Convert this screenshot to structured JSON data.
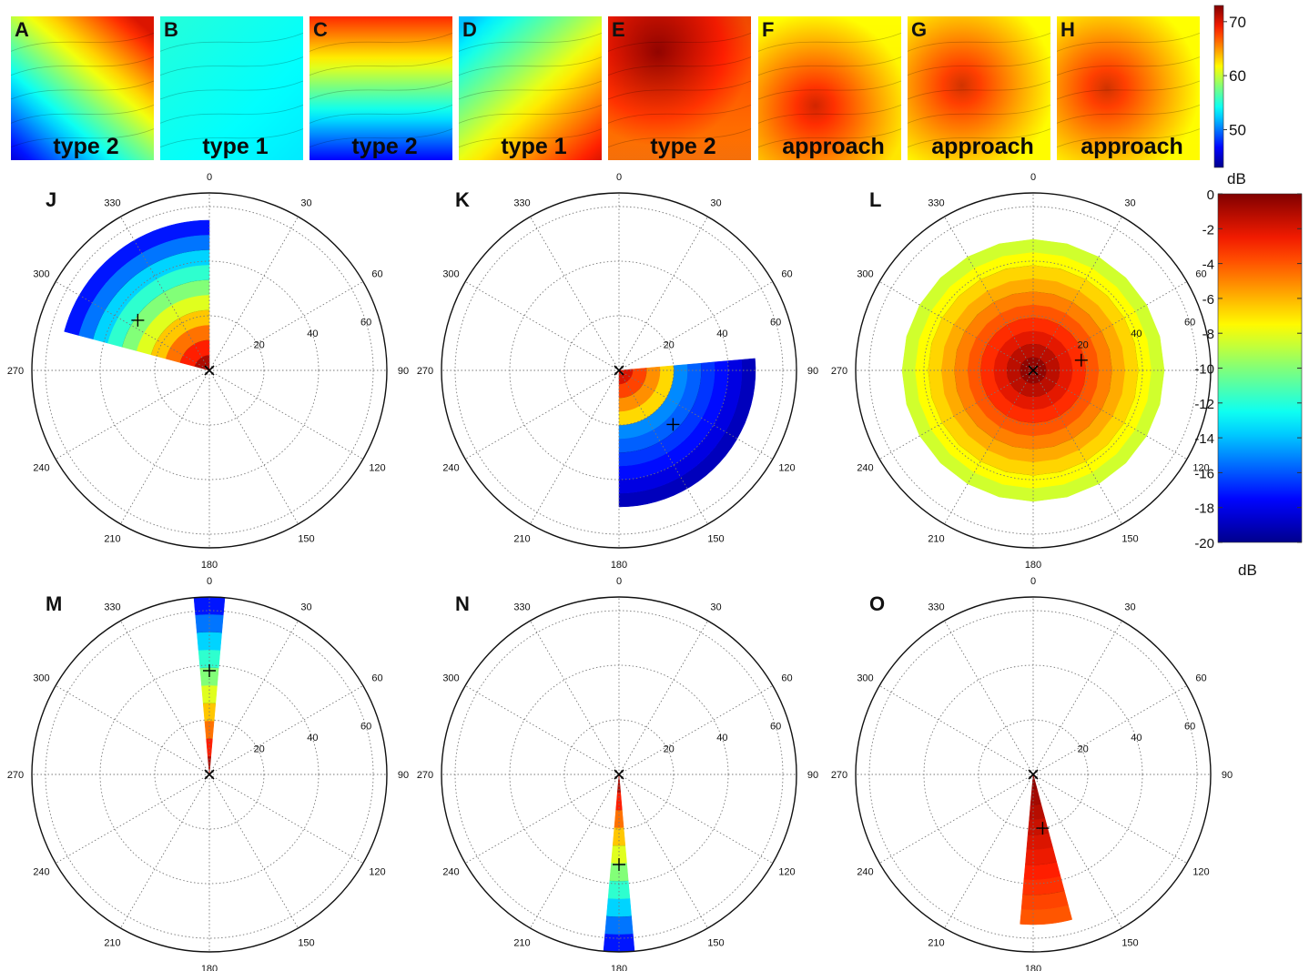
{
  "chart_data": [
    {
      "type": "heatmap",
      "group": "top-row",
      "colorbar": {
        "label": "dB",
        "ticks": [
          50,
          60,
          70
        ],
        "range": [
          43,
          73
        ]
      },
      "panels": [
        {
          "letter": "A",
          "label": "type 2",
          "pattern": "diag-tr"
        },
        {
          "letter": "B",
          "label": "type 1",
          "pattern": "flat-cyan"
        },
        {
          "letter": "C",
          "label": "type 2",
          "pattern": "top-hot"
        },
        {
          "letter": "D",
          "label": "type 1",
          "pattern": "diag-br"
        },
        {
          "letter": "E",
          "label": "type 2",
          "pattern": "top-peak"
        },
        {
          "letter": "F",
          "label": "approach",
          "pattern": "peak-low"
        },
        {
          "letter": "G",
          "label": "approach",
          "pattern": "peak-mid"
        },
        {
          "letter": "H",
          "label": "approach",
          "pattern": "peak-left"
        }
      ]
    },
    {
      "type": "heatmap",
      "group": "polar-plots",
      "colorbar": {
        "label": "dB",
        "ticks": [
          0,
          -2,
          -4,
          -6,
          -8,
          -10,
          -12,
          -14,
          -16,
          -18,
          -20
        ],
        "range": [
          -20,
          0
        ]
      },
      "angle_labels": [
        "0",
        "30",
        "60",
        "90",
        "120",
        "150",
        "180",
        "210",
        "240",
        "270",
        "300",
        "330"
      ],
      "radius_labels": [
        "20",
        "40",
        "60"
      ],
      "panels": [
        {
          "letter": "J",
          "theta_range": [
            285,
            360
          ],
          "r_range": [
            0,
            55
          ],
          "plus": {
            "theta": 305,
            "r": 32
          }
        },
        {
          "letter": "K",
          "theta_range": [
            85,
            180
          ],
          "r_range": [
            0,
            50
          ],
          "plus": {
            "theta": 135,
            "r": 28
          }
        },
        {
          "letter": "L",
          "theta_range": [
            0,
            360
          ],
          "r_range": [
            0,
            48
          ],
          "plus": {
            "theta": 78,
            "r": 18
          }
        },
        {
          "letter": "M",
          "theta_range": [
            355,
            5
          ],
          "r_range": [
            0,
            65
          ],
          "plus": {
            "theta": 0,
            "r": 38
          }
        },
        {
          "letter": "N",
          "theta_range": [
            175,
            185
          ],
          "r_range": [
            0,
            65
          ],
          "plus": {
            "theta": 180,
            "r": 33
          }
        },
        {
          "letter": "O",
          "theta_range": [
            165,
            185
          ],
          "r_range": [
            0,
            55
          ],
          "plus": {
            "theta": 170,
            "r": 20
          }
        }
      ]
    }
  ]
}
